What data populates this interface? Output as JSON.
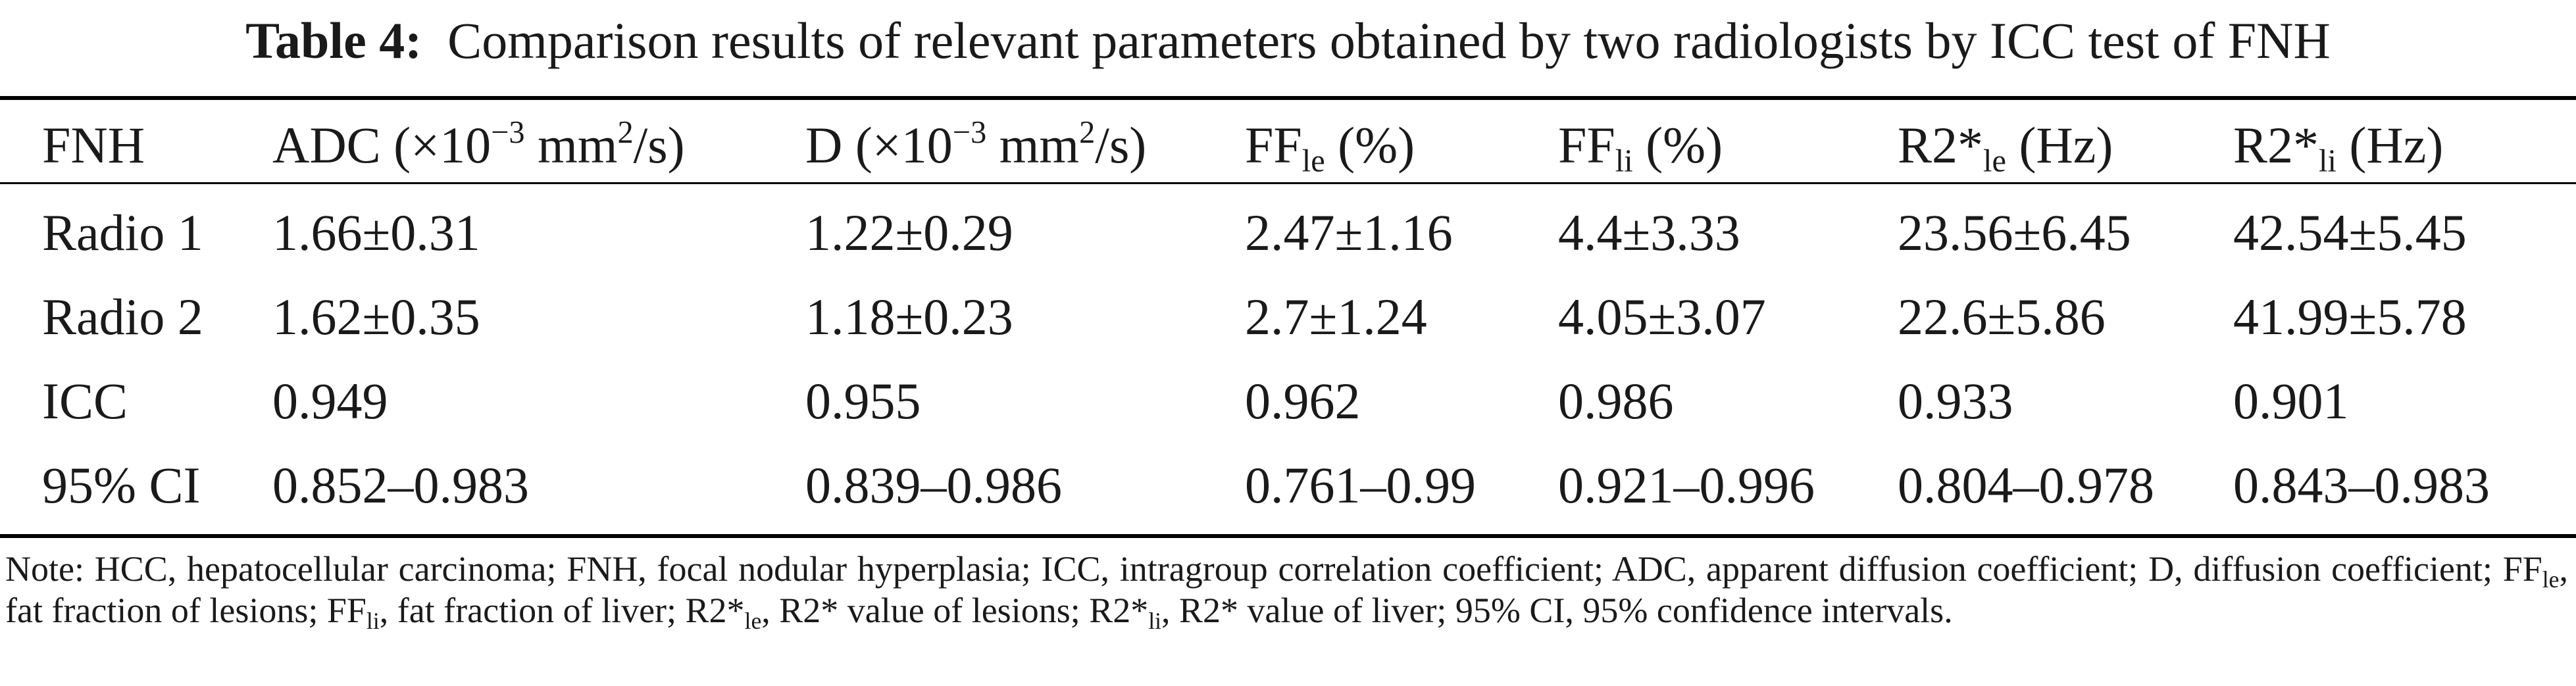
{
  "caption": {
    "label": "Table 4:",
    "text": "Comparison results of relevant parameters obtained by two radiologists by ICC test of FNH"
  },
  "table": {
    "headers": [
      {
        "text": "FNH"
      },
      {
        "base": "ADC (×10",
        "exp": "−3",
        "mid": " mm",
        "exp2": "2",
        "tail": "/s)"
      },
      {
        "base": "D (×10",
        "exp": "−3",
        "mid": " mm",
        "exp2": "2",
        "tail": "/s)"
      },
      {
        "base": "FF",
        "sub": "le",
        "tail": " (%)"
      },
      {
        "base": "FF",
        "sub": "li",
        "tail": " (%)"
      },
      {
        "base": "R2*",
        "sub": "le",
        "tail": " (Hz)"
      },
      {
        "base": "R2*",
        "sub": "li",
        "tail": " (Hz)"
      }
    ],
    "rows": [
      [
        "Radio 1",
        "1.66±0.31",
        "1.22±0.29",
        "2.47±1.16",
        "4.4±3.33",
        "23.56±6.45",
        "42.54±5.45"
      ],
      [
        "Radio 2",
        "1.62±0.35",
        "1.18±0.23",
        "2.7±1.24",
        "4.05±3.07",
        "22.6±5.86",
        "41.99±5.78"
      ],
      [
        "ICC",
        "0.949",
        "0.955",
        "0.962",
        "0.986",
        "0.933",
        "0.901"
      ],
      [
        "95% CI",
        "0.852–0.983",
        "0.839–0.986",
        "0.761–0.99",
        "0.921–0.996",
        "0.804–0.978",
        "0.843–0.983"
      ]
    ]
  },
  "note": {
    "p1": "Note: HCC, hepatocellular carcinoma; FNH, focal nodular hyperplasia; ICC, intragroup correlation coefficient; ADC, apparent diffusion coefficient; D, diffusion coefficient; FF",
    "s1": "le",
    "p2": ", fat fraction of lesions; FF",
    "s2": "li",
    "p3": ", fat fraction of liver; R2*",
    "s3": "le",
    "p4": ", R2* value of lesions; R2*",
    "s4": "li",
    "p5": ", R2* value of liver; 95% CI, 95% confidence intervals."
  }
}
